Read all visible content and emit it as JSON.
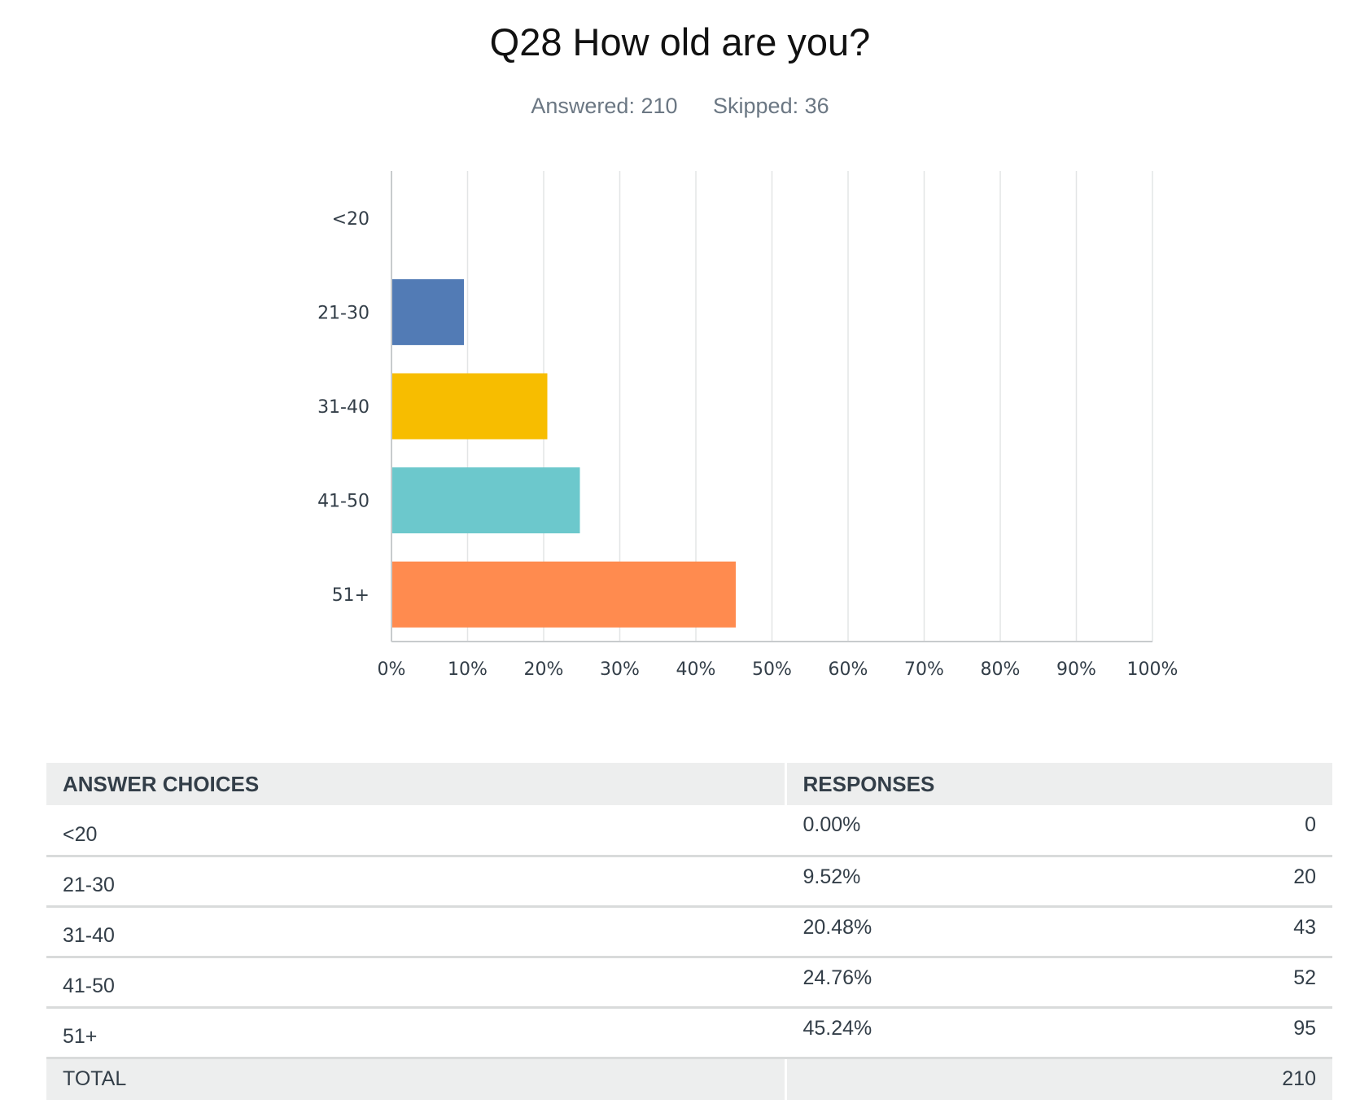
{
  "question": {
    "title": "Q28 How old are you?",
    "answered_label": "Answered: 210",
    "skipped_label": "Skipped: 36"
  },
  "chart_data": {
    "type": "bar",
    "orientation": "horizontal",
    "categories": [
      "<20",
      "21-30",
      "31-40",
      "41-50",
      "51+"
    ],
    "values": [
      0.0,
      9.52,
      20.48,
      24.76,
      45.24
    ],
    "colors": [
      "#6a9ad6",
      "#527bb5",
      "#f7bd00",
      "#6cc8cc",
      "#ff8b4f"
    ],
    "x_ticks": [
      "0%",
      "10%",
      "20%",
      "30%",
      "40%",
      "50%",
      "60%",
      "70%",
      "80%",
      "90%",
      "100%"
    ],
    "xlim": [
      0,
      100
    ],
    "grid": true
  },
  "table": {
    "headers": {
      "choice": "ANSWER CHOICES",
      "responses": "RESPONSES"
    },
    "rows": [
      {
        "choice": "<20",
        "percent": "0.00%",
        "count": "0"
      },
      {
        "choice": "21-30",
        "percent": "9.52%",
        "count": "20"
      },
      {
        "choice": "31-40",
        "percent": "20.48%",
        "count": "43"
      },
      {
        "choice": "41-50",
        "percent": "24.76%",
        "count": "52"
      },
      {
        "choice": "51+",
        "percent": "45.24%",
        "count": "95"
      }
    ],
    "total": {
      "label": "TOTAL",
      "value": "210"
    }
  }
}
